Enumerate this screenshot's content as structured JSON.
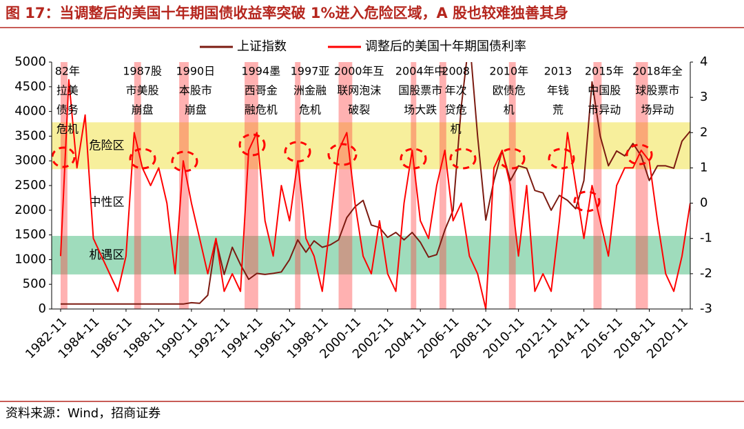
{
  "chart_data": {
    "type": "line",
    "title": "图 17：当调整后的美国十年期国债收益率突破 1%进入危险区域，A 股也较难独善其身",
    "source": "资料来源：Wind，招商证券",
    "x": [
      "1982-11",
      "1983-05",
      "1983-11",
      "1984-05",
      "1984-11",
      "1985-05",
      "1985-11",
      "1986-05",
      "1986-11",
      "1987-05",
      "1987-11",
      "1988-05",
      "1988-11",
      "1989-05",
      "1989-11",
      "1990-05",
      "1990-11",
      "1991-05",
      "1991-11",
      "1992-05",
      "1992-11",
      "1993-05",
      "1993-11",
      "1994-05",
      "1994-11",
      "1995-05",
      "1995-11",
      "1996-05",
      "1996-11",
      "1997-05",
      "1997-11",
      "1998-05",
      "1998-11",
      "1999-05",
      "1999-11",
      "2000-05",
      "2000-11",
      "2001-05",
      "2001-11",
      "2002-05",
      "2002-11",
      "2003-05",
      "2003-11",
      "2004-05",
      "2004-11",
      "2005-05",
      "2005-11",
      "2006-05",
      "2006-11",
      "2007-05",
      "2007-11",
      "2008-05",
      "2008-11",
      "2009-05",
      "2009-11",
      "2010-05",
      "2010-11",
      "2011-05",
      "2011-11",
      "2012-05",
      "2012-11",
      "2013-05",
      "2013-11",
      "2014-05",
      "2014-11",
      "2015-05",
      "2015-11",
      "2016-05",
      "2016-11",
      "2017-05",
      "2017-11",
      "2018-05",
      "2018-11",
      "2019-05",
      "2019-11",
      "2020-05",
      "2020-11",
      "2021-05"
    ],
    "xticks": [
      "1982-11",
      "1984-11",
      "1986-11",
      "1988-11",
      "1990-11",
      "1992-11",
      "1994-11",
      "1996-11",
      "1998-11",
      "2000-11",
      "2002-11",
      "2004-11",
      "2006-11",
      "2008-11",
      "2010-11",
      "2012-11",
      "2014-11",
      "2016-11",
      "2018-11",
      "2020-11"
    ],
    "ylim": [
      0,
      5000
    ],
    "yticks": [
      0,
      500,
      1000,
      1500,
      2000,
      2500,
      3000,
      3500,
      4000,
      4500,
      5000
    ],
    "y2lim": [
      -3,
      4
    ],
    "y2ticks": [
      -3,
      -2,
      -1,
      0,
      1,
      2,
      3,
      4
    ],
    "series": [
      {
        "name": "上证指数",
        "color": "#7b1a10",
        "axis": "y",
        "values": [
          100,
          100,
          100,
          100,
          100,
          100,
          100,
          100,
          100,
          100,
          100,
          100,
          100,
          100,
          100,
          100,
          127,
          115,
          280,
          1400,
          700,
          1250,
          900,
          600,
          720,
          700,
          720,
          750,
          1000,
          1400,
          1150,
          1380,
          1250,
          1300,
          1400,
          1850,
          2070,
          2200,
          1700,
          1650,
          1450,
          1550,
          1400,
          1550,
          1350,
          1050,
          1100,
          1600,
          2000,
          4100,
          5500,
          3500,
          1800,
          2600,
          3200,
          2600,
          2900,
          2850,
          2400,
          2350,
          2000,
          2300,
          2200,
          2030,
          2600,
          4600,
          3500,
          2900,
          3200,
          3100,
          3350,
          3100,
          2600,
          2900,
          2900,
          2850,
          3400,
          3600
        ]
      },
      {
        "name": "调整后的美国十年期国债利率",
        "color": "#ff0000",
        "axis": "y2",
        "values": [
          -1.5,
          3.5,
          1.0,
          2.5,
          -1.0,
          -1.5,
          -2.0,
          -2.5,
          -1.5,
          2.0,
          1.0,
          0.5,
          1.0,
          0.0,
          -2.0,
          1.2,
          0.0,
          -1.0,
          -2.0,
          -1.0,
          -2.5,
          -2.0,
          -2.5,
          1.5,
          2.0,
          -0.5,
          -1.5,
          0.5,
          -0.5,
          1.2,
          -1.0,
          -1.5,
          -2.5,
          -0.5,
          1.5,
          2.0,
          0.0,
          -1.5,
          -2.0,
          -0.5,
          -2.0,
          -2.5,
          0.0,
          1.5,
          -0.5,
          -1.0,
          0.5,
          1.5,
          -0.5,
          0.0,
          -1.5,
          -2.0,
          -3.0,
          1.0,
          1.5,
          0.5,
          -1.5,
          0.5,
          -2.5,
          -2.0,
          -2.5,
          -0.5,
          2.0,
          0.5,
          -1.0,
          0.5,
          -0.5,
          -1.5,
          0.5,
          1.0,
          1.0,
          1.5,
          1.2,
          -0.5,
          -2.0,
          -2.5,
          -1.5,
          0.0
        ]
      }
    ],
    "zones": [
      {
        "label": "危险区",
        "range": [
          2830,
          3780
        ],
        "color": "#f7ef9c"
      },
      {
        "label": "中性区",
        "range": [
          1480,
          2830
        ],
        "color": "#ffffff"
      },
      {
        "label": "机遇区",
        "range": [
          700,
          1480
        ],
        "color": "#9fdcbc"
      }
    ],
    "periods": [
      {
        "start": "1982-11",
        "end": "1983-04"
      },
      {
        "start": "1987-05",
        "end": "1987-10"
      },
      {
        "start": "1990-02",
        "end": "1990-09"
      },
      {
        "start": "1994-02",
        "end": "1994-12"
      },
      {
        "start": "1997-03",
        "end": "1997-07"
      },
      {
        "start": "1999-11",
        "end": "2000-09"
      },
      {
        "start": "2004-04",
        "end": "2004-08"
      },
      {
        "start": "2006-01",
        "end": "2006-06"
      },
      {
        "start": "2010-04",
        "end": "2010-09"
      },
      {
        "start": "2015-06",
        "end": "2015-12"
      },
      {
        "start": "2018-01",
        "end": "2018-10"
      }
    ],
    "annotations": [
      {
        "x": "1983-04",
        "lines": [
          "82年",
          "拉美",
          "债务",
          "危机"
        ]
      },
      {
        "x": "1987-11",
        "lines": [
          "1987股",
          "市美股",
          "崩盘"
        ]
      },
      {
        "x": "1991-02",
        "lines": [
          "1990日",
          "本股市",
          "崩盘"
        ]
      },
      {
        "x": "1995-02",
        "lines": [
          "1994墨",
          "西哥金",
          "融危机"
        ]
      },
      {
        "x": "1998-02",
        "lines": [
          "1997亚",
          "洲金融",
          "危机"
        ]
      },
      {
        "x": "2001-02",
        "lines": [
          "2000年互",
          "联网泡沫",
          "破裂"
        ]
      },
      {
        "x": "2004-11",
        "lines": [
          "2004年中",
          "国股票市",
          "场大跌"
        ]
      },
      {
        "x": "2007-01",
        "lines": [
          "2008",
          "年次",
          "贷危",
          "机"
        ]
      },
      {
        "x": "2010-04",
        "lines": [
          "2010年",
          "欧债危",
          "机"
        ]
      },
      {
        "x": "2013-04",
        "lines": [
          "2013",
          "年钱",
          "荒"
        ]
      },
      {
        "x": "2016-02",
        "lines": [
          "2015年",
          "中国股",
          "市异动"
        ]
      },
      {
        "x": "2019-05",
        "lines": [
          "2018年全",
          "球股票市",
          "场异动"
        ]
      }
    ]
  }
}
